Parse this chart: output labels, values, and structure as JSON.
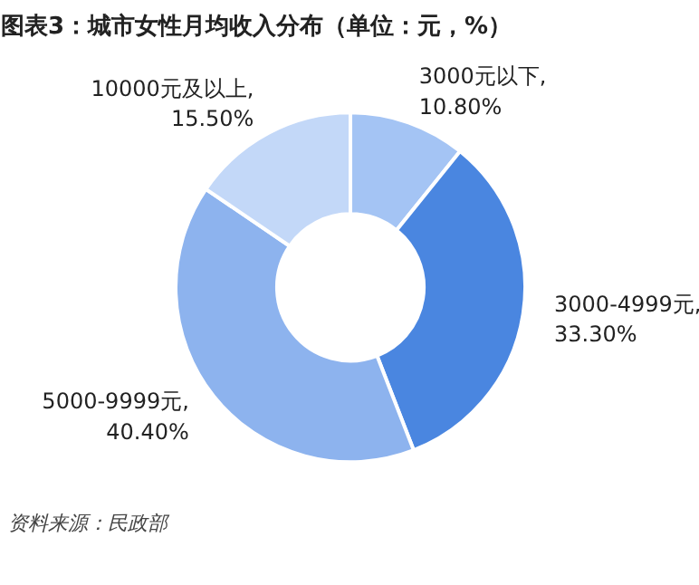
{
  "chart_data": {
    "type": "donut",
    "title": "图表3：城市女性月均收入分布（单位：元，%）",
    "categories": [
      "3000元以下",
      "3000-4999元",
      "5000-9999元",
      "10000元及以上"
    ],
    "values": [
      10.8,
      33.3,
      40.4,
      15.5
    ],
    "value_labels": [
      ", 10.80%",
      ", 33.30%",
      ", 40.40%",
      ", 15.50%"
    ],
    "colors": [
      "#a4c4f4",
      "#4a86e0",
      "#8db3ee",
      "#c3d8f8"
    ],
    "annotations": [
      "资料来源：民政部"
    ]
  }
}
